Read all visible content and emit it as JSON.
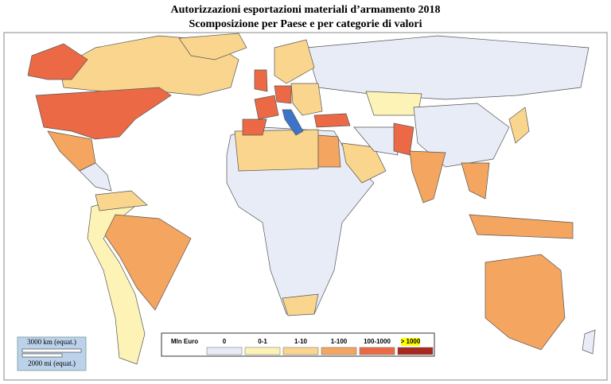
{
  "header": {
    "title": "Autorizzazioni esportazioni materiali d’armamento 2018",
    "subtitle": "Scomposizione per Paese e per categorie di valori"
  },
  "legend": {
    "unit": "Mln Euro",
    "classes": [
      {
        "label": "0",
        "color": "#e8ecf6"
      },
      {
        "label": "0-1",
        "color": "#fdf3b6"
      },
      {
        "label": "1-10",
        "color": "#fad58e"
      },
      {
        "label": "1-100",
        "color": "#f4a55f"
      },
      {
        "label": "100-1000",
        "color": "#eb6a45"
      },
      {
        "label": "> 1000",
        "color": "#a8291f"
      }
    ]
  },
  "scale_bar": {
    "km": "3000 km (equat.)",
    "mi": "2000 mi (equat.)"
  }
}
